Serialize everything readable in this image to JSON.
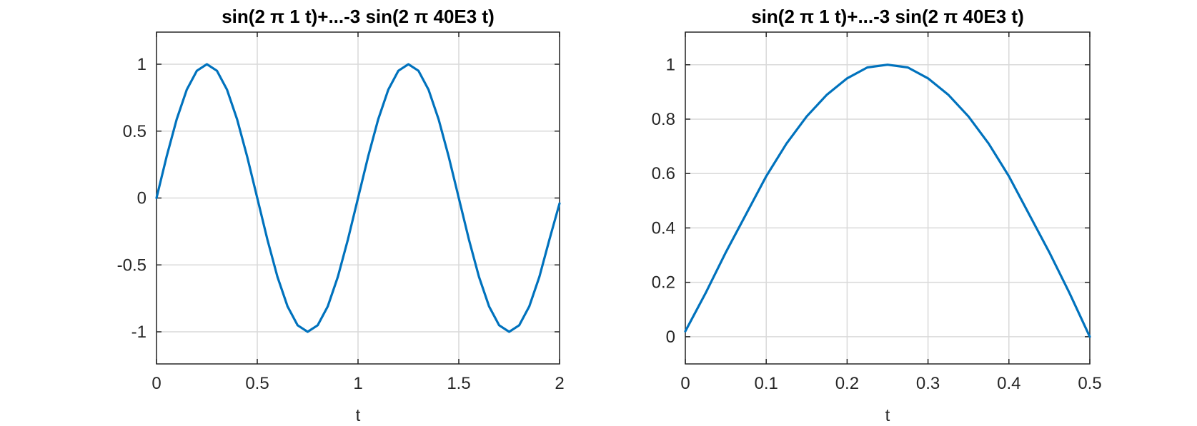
{
  "chart_data": [
    {
      "type": "line",
      "title": "sin(2 π 1 t)+...-3 sin(2 π 40E3 t)",
      "xlabel": "t",
      "ylabel": "",
      "xlim": [
        0,
        2
      ],
      "ylim": [
        -1.24,
        1.24
      ],
      "xticks": [
        0,
        0.5,
        1,
        1.5,
        2
      ],
      "xtick_labels": [
        "0",
        "0.5",
        "1",
        "1.5",
        "2"
      ],
      "yticks": [
        -1,
        -0.5,
        0,
        0.5,
        1
      ],
      "ytick_labels": [
        "-1",
        "-0.5",
        "0",
        "0.5",
        "1"
      ],
      "grid": true,
      "color": "#0072BD",
      "series": [
        {
          "x": [
            0,
            0.05,
            0.1,
            0.15,
            0.2,
            0.25,
            0.3,
            0.35,
            0.4,
            0.45,
            0.5,
            0.55,
            0.6,
            0.65,
            0.7,
            0.75,
            0.8,
            0.85,
            0.9,
            0.95,
            1.0,
            1.05,
            1.1,
            1.15,
            1.2,
            1.25,
            1.3,
            1.35,
            1.4,
            1.45,
            1.5,
            1.55,
            1.6,
            1.65,
            1.7,
            1.75,
            1.8,
            1.85,
            1.9,
            1.95,
            2.0
          ],
          "values": [
            0.0,
            0.309,
            0.588,
            0.809,
            0.951,
            1.0,
            0.951,
            0.809,
            0.588,
            0.309,
            0.0,
            -0.309,
            -0.588,
            -0.809,
            -0.951,
            -1.0,
            -0.951,
            -0.809,
            -0.588,
            -0.309,
            0.0,
            0.309,
            0.588,
            0.809,
            0.951,
            1.0,
            0.951,
            0.809,
            0.588,
            0.309,
            0.0,
            -0.309,
            -0.588,
            -0.809,
            -0.951,
            -1.0,
            -0.951,
            -0.809,
            -0.588,
            -0.309,
            -0.04
          ]
        }
      ]
    },
    {
      "type": "line",
      "title": "sin(2 π 1 t)+...-3 sin(2 π 40E3 t)",
      "xlabel": "t",
      "ylabel": "",
      "xlim": [
        0,
        0.5
      ],
      "ylim": [
        -0.1,
        1.12
      ],
      "xticks": [
        0,
        0.1,
        0.2,
        0.3,
        0.4,
        0.5
      ],
      "xtick_labels": [
        "0",
        "0.1",
        "0.2",
        "0.3",
        "0.4",
        "0.5"
      ],
      "yticks": [
        0,
        0.2,
        0.4,
        0.6,
        0.8,
        1
      ],
      "ytick_labels": [
        "0",
        "0.2",
        "0.4",
        "0.6",
        "0.8",
        "1"
      ],
      "grid": true,
      "color": "#0072BD",
      "series": [
        {
          "x": [
            0,
            0.025,
            0.05,
            0.075,
            0.1,
            0.125,
            0.15,
            0.175,
            0.2,
            0.225,
            0.25,
            0.275,
            0.3,
            0.325,
            0.35,
            0.375,
            0.4,
            0.425,
            0.45,
            0.475,
            0.5
          ],
          "values": [
            0.02,
            0.16,
            0.31,
            0.45,
            0.59,
            0.71,
            0.81,
            0.89,
            0.95,
            0.99,
            1.0,
            0.99,
            0.95,
            0.89,
            0.81,
            0.71,
            0.59,
            0.45,
            0.31,
            0.16,
            0.0
          ]
        }
      ]
    }
  ]
}
